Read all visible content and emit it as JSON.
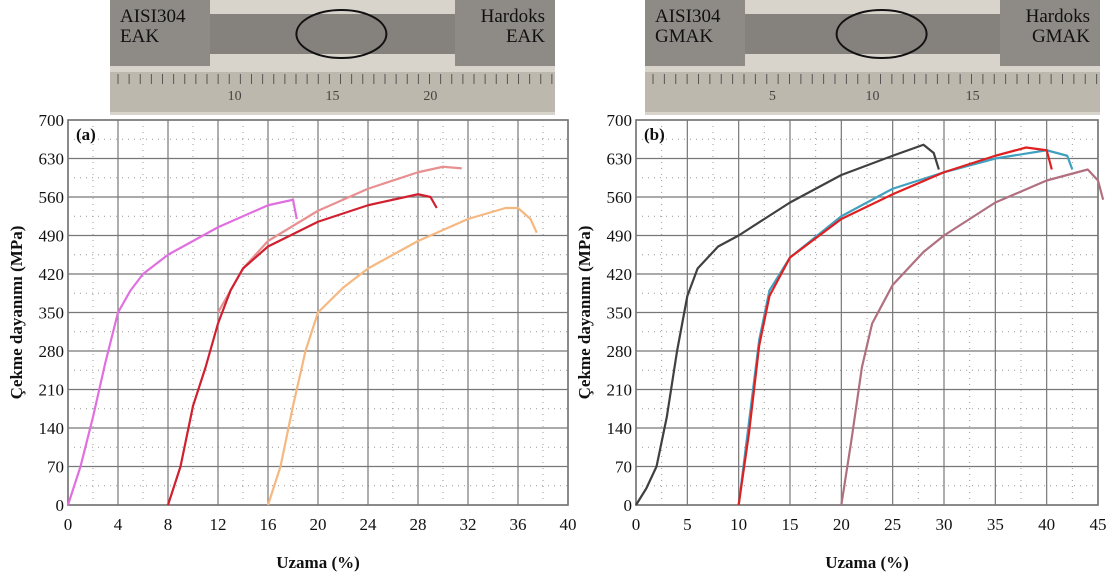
{
  "photos": [
    {
      "left_label": [
        "AISI304",
        "EAK"
      ],
      "right_label": [
        "Hardoks",
        "EAK"
      ],
      "ruler": [
        "10",
        "15",
        "20"
      ]
    },
    {
      "left_label": [
        "AISI304",
        "GMAK"
      ],
      "right_label": [
        "Hardoks",
        "GMAK"
      ],
      "ruler": [
        "5",
        "10",
        "15"
      ]
    }
  ],
  "chart_data": [
    {
      "type": "line",
      "annotation": "(a)",
      "xlabel": "Uzama (%)",
      "ylabel": "Çekme dayanımı (MPa)",
      "xlim": [
        0,
        40
      ],
      "xticks": [
        0,
        4,
        8,
        12,
        16,
        20,
        24,
        28,
        32,
        36,
        40
      ],
      "ylim": [
        0,
        700
      ],
      "yticks": [
        0,
        70,
        140,
        210,
        280,
        350,
        420,
        490,
        560,
        630,
        700
      ],
      "grid": true,
      "series": [
        {
          "color": "#e070e0",
          "x": [
            0,
            1,
            2,
            3,
            4,
            5,
            6,
            8,
            10,
            12,
            14,
            16,
            18,
            18.3
          ],
          "values": [
            0,
            70,
            160,
            260,
            350,
            390,
            420,
            455,
            480,
            505,
            525,
            545,
            555,
            520
          ]
        },
        {
          "color": "#e89090",
          "x": [
            12,
            14,
            16,
            20,
            24,
            28,
            30,
            31.5
          ],
          "values": [
            350,
            430,
            480,
            535,
            575,
            605,
            615,
            612
          ]
        },
        {
          "color": "#d02030",
          "x": [
            8,
            9,
            10,
            11,
            12,
            13,
            14,
            16,
            20,
            24,
            28,
            29,
            29.5
          ],
          "values": [
            0,
            70,
            180,
            250,
            330,
            390,
            430,
            470,
            515,
            545,
            565,
            560,
            540
          ]
        },
        {
          "color": "#f5b880",
          "x": [
            16,
            17,
            18,
            19,
            20,
            22,
            24,
            28,
            32,
            35,
            36,
            37,
            37.5
          ],
          "values": [
            0,
            70,
            180,
            280,
            350,
            395,
            430,
            480,
            520,
            540,
            540,
            520,
            495
          ]
        }
      ]
    },
    {
      "type": "line",
      "annotation": "(b)",
      "xlabel": "Uzama (%)",
      "ylabel": "Çekme dayanımı (MPa)",
      "xlim": [
        0,
        45
      ],
      "xticks": [
        0,
        5,
        10,
        15,
        20,
        25,
        30,
        35,
        40,
        45
      ],
      "ylim": [
        0,
        700
      ],
      "yticks": [
        0,
        70,
        140,
        210,
        280,
        350,
        420,
        490,
        560,
        630,
        700
      ],
      "grid": true,
      "series": [
        {
          "color": "#404040",
          "x": [
            0,
            1,
            2,
            3,
            4,
            5,
            6,
            8,
            10,
            15,
            20,
            25,
            28,
            29,
            29.5
          ],
          "values": [
            0,
            30,
            70,
            160,
            280,
            380,
            430,
            470,
            490,
            550,
            600,
            635,
            655,
            640,
            610
          ]
        },
        {
          "color": "#40a0c0",
          "x": [
            10,
            11,
            12,
            13,
            15,
            20,
            25,
            30,
            35,
            40,
            42,
            42.5
          ],
          "values": [
            0,
            150,
            300,
            390,
            450,
            525,
            575,
            605,
            630,
            645,
            635,
            610
          ]
        },
        {
          "color": "#e02020",
          "x": [
            10,
            11,
            12,
            13,
            15,
            20,
            25,
            30,
            35,
            38,
            40,
            40.5
          ],
          "values": [
            0,
            130,
            290,
            380,
            450,
            520,
            565,
            605,
            635,
            650,
            645,
            610
          ]
        },
        {
          "color": "#b07080",
          "x": [
            20,
            21,
            22,
            23,
            25,
            28,
            30,
            35,
            40,
            44,
            45,
            45.5
          ],
          "values": [
            0,
            120,
            250,
            330,
            400,
            460,
            490,
            550,
            590,
            610,
            590,
            555
          ]
        }
      ]
    }
  ]
}
